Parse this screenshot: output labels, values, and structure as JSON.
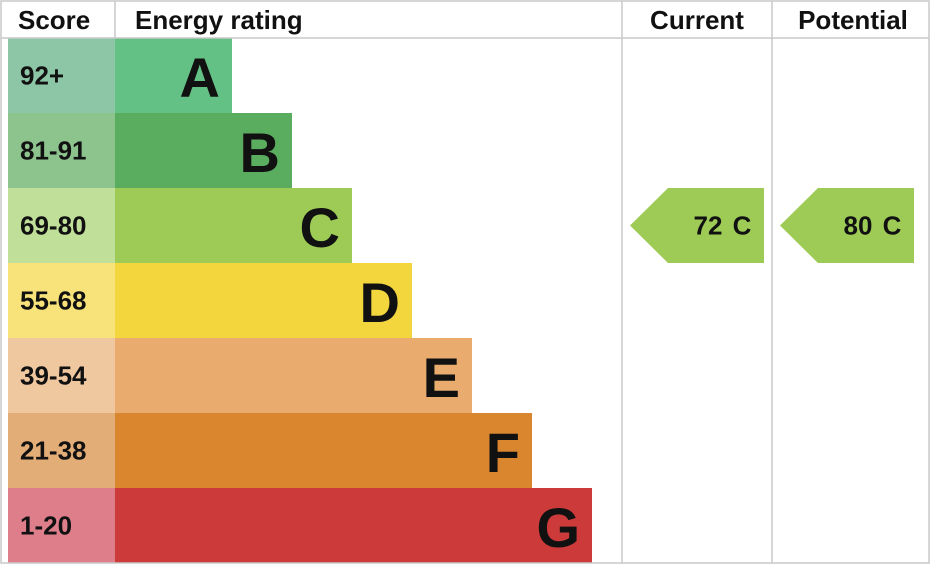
{
  "header": {
    "score": "Score",
    "rating": "Energy rating",
    "current": "Current",
    "potential": "Potential"
  },
  "bands": [
    {
      "score": "92+",
      "letter": "A",
      "color": "#64c185",
      "score_color": "#8cc6a6"
    },
    {
      "score": "81-91",
      "letter": "B",
      "color": "#5aad5f",
      "score_color": "#8dc48e"
    },
    {
      "score": "69-80",
      "letter": "C",
      "color": "#9dcb55",
      "score_color": "#c0df98"
    },
    {
      "score": "55-68",
      "letter": "D",
      "color": "#f3d53d",
      "score_color": "#f7e37a"
    },
    {
      "score": "39-54",
      "letter": "E",
      "color": "#e9ab6e",
      "score_color": "#f0c8a0"
    },
    {
      "score": "21-38",
      "letter": "F",
      "color": "#d9862f",
      "score_color": "#e3ad78"
    },
    {
      "score": "1-20",
      "letter": "G",
      "color": "#cc3a3a",
      "score_color": "#de7e8b"
    }
  ],
  "current": {
    "value": 72,
    "letter": "C"
  },
  "potential": {
    "value": 80,
    "letter": "C"
  }
}
